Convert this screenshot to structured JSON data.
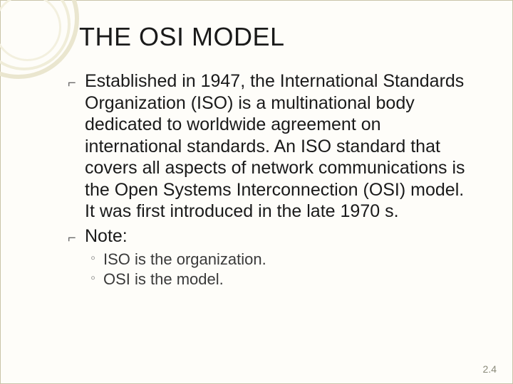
{
  "slide": {
    "title": "THE OSI MODEL",
    "bullets": [
      {
        "text": "Established in 1947, the International Standards Organization (ISO) is a multinational body dedicated to worldwide agreement on international standards. An ISO standard that covers all aspects of network communications is the Open Systems Interconnection (OSI) model. It was first introduced in the late 1970 s."
      },
      {
        "text": "Note:"
      }
    ],
    "sub_bullets": [
      {
        "text": "ISO is the organization."
      },
      {
        "text": "OSI is the model."
      }
    ],
    "page_number": "2.4"
  },
  "style": {
    "background_color": "#fefdf9",
    "border_color": "#c9c4a9",
    "title_fontsize": 36,
    "body_fontsize": 25,
    "sub_fontsize": 22,
    "text_color": "#1a1a1a",
    "sub_text_color": "#3a3a3a",
    "pagenum_color": "#8a8a7a",
    "l1_marker": "⌐",
    "l2_marker": "◦",
    "ring_colors": [
      "#eae6cf",
      "#f0edd9",
      "#f3f0df"
    ]
  }
}
